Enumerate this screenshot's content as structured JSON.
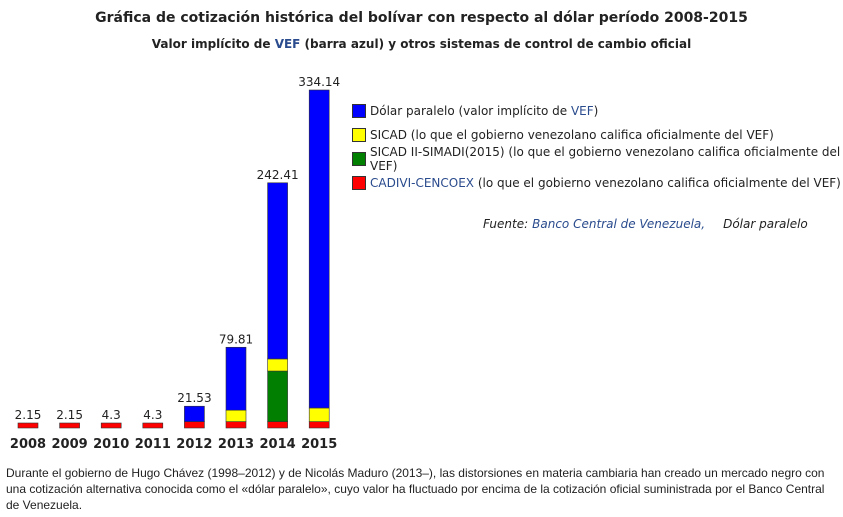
{
  "title": "Gráfica de cotización histórica del bolívar con respecto al dólar período 2008-2015",
  "subtitle": {
    "before": "Valor implícito de ",
    "link": "VEF",
    "after": " (barra azul) y otros sistemas de control de cambio oficial"
  },
  "legend": [
    {
      "text": "Dólar paralelo (valor implícito de ",
      "link": "VEF",
      "suffix": ")",
      "color": "#0000ff"
    },
    {
      "text": "SICAD (lo que el gobierno venezolano califica oficialmente del VEF)",
      "link": "",
      "suffix": "",
      "color": "#ffff00"
    },
    {
      "text": "SICAD II-SIMADI(2015) (lo que el gobierno venezolano califica oficialmente del VEF)",
      "link": "",
      "suffix": "",
      "color": "#007f00"
    },
    {
      "text": "",
      "link": "CADIVI-CENCOEX",
      "suffix": " (lo que el gobierno venezolano califica oficialmente del VEF)",
      "color": "#ff0000"
    }
  ],
  "source": {
    "label": "Fuente:",
    "link": "Banco Central de Venezuela,",
    "extra": "Dólar paralelo"
  },
  "caption": "Durante el gobierno de Hugo Chávez (1998–2012) y de Nicolás Maduro (2013–), las distorsiones en materia cambiaria han creado un mercado negro con una cotización alternativa conocida como el «dólar paralelo», cuyo valor ha fluctuado por encima de la cotización oficial suministrada por el Banco Central de Venezuela.",
  "chart_data": {
    "type": "bar",
    "stacked": true,
    "categories": [
      "2008",
      "2009",
      "2010",
      "2011",
      "2012",
      "2013",
      "2014",
      "2015"
    ],
    "total_labels": [
      "2.15",
      "2.15",
      "4.3",
      "4.3",
      "21.53",
      "79.81",
      "242.41",
      "334.14"
    ],
    "series": [
      {
        "name": "CADIVI-CENCOEX",
        "color": "#ff0000",
        "values": [
          2.15,
          2.15,
          4.3,
          4.3,
          6.3,
          6.3,
          6.3,
          6.3
        ]
      },
      {
        "name": "SICAD II-SIMADI(2015)",
        "color": "#007f00",
        "values": [
          0,
          0,
          0,
          0,
          0,
          0,
          50,
          0
        ]
      },
      {
        "name": "SICAD",
        "color": "#ffff00",
        "values": [
          0,
          0,
          0,
          0,
          0,
          11.3,
          12,
          13.5
        ]
      },
      {
        "name": "Dólar paralelo",
        "color": "#0000ff",
        "values": [
          0,
          0,
          0,
          0,
          15.23,
          62.21,
          174.11,
          314.34
        ]
      }
    ],
    "ylim": [
      0,
      334.14
    ],
    "grid": false,
    "legend_position": "right"
  }
}
